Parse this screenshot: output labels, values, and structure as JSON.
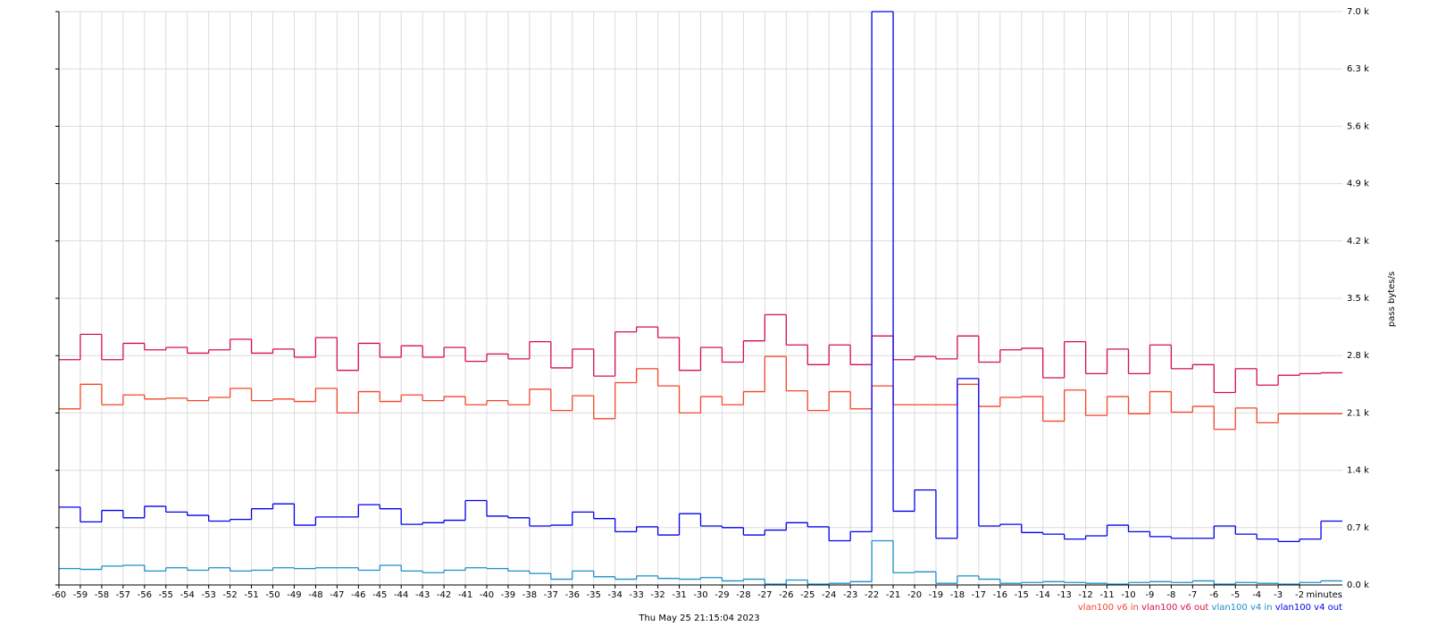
{
  "chart_data": {
    "type": "step-line",
    "x_label": "minutes",
    "y_label": "pass bytes/s",
    "timestamp": "Thu May 25 21:15:04 2023",
    "x": [
      -60,
      -59,
      -58,
      -57,
      -56,
      -55,
      -54,
      -53,
      -52,
      -51,
      -50,
      -49,
      -48,
      -47,
      -46,
      -45,
      -44,
      -43,
      -42,
      -41,
      -40,
      -39,
      -38,
      -37,
      -36,
      -35,
      -34,
      -33,
      -32,
      -31,
      -30,
      -29,
      -28,
      -27,
      -26,
      -25,
      -24,
      -23,
      -22,
      -21,
      -20,
      -19,
      -18,
      -17,
      -16,
      -15,
      -14,
      -13,
      -12,
      -11,
      -10,
      -9,
      -8,
      -7,
      -6,
      -5,
      -4,
      -3,
      -2,
      -1
    ],
    "xlim": [
      -60,
      0
    ],
    "xticks": [
      -60,
      -59,
      -58,
      -57,
      -56,
      -55,
      -54,
      -53,
      -52,
      -51,
      -50,
      -49,
      -48,
      -47,
      -46,
      -45,
      -44,
      -43,
      -42,
      -41,
      -40,
      -39,
      -38,
      -37,
      -36,
      -35,
      -34,
      -33,
      -32,
      -31,
      -30,
      -29,
      -28,
      -27,
      -26,
      -25,
      -24,
      -23,
      -22,
      -21,
      -20,
      -19,
      -18,
      -17,
      -16,
      -15,
      -14,
      -13,
      -12,
      -11,
      -10,
      -9,
      -8,
      -7,
      -6,
      -5,
      -4,
      -3,
      -2
    ],
    "ylim": [
      0,
      7000
    ],
    "yticks": [
      {
        "value": 0,
        "label": "0.0 k"
      },
      {
        "value": 700,
        "label": "0.7 k"
      },
      {
        "value": 1400,
        "label": "1.4 k"
      },
      {
        "value": 2100,
        "label": "2.1 k"
      },
      {
        "value": 2800,
        "label": "2.8 k"
      },
      {
        "value": 3500,
        "label": "3.5 k"
      },
      {
        "value": 4200,
        "label": "4.2 k"
      },
      {
        "value": 4900,
        "label": "4.9 k"
      },
      {
        "value": 5600,
        "label": "5.6 k"
      },
      {
        "value": 6300,
        "label": "6.3 k"
      },
      {
        "value": 7000,
        "label": "7.0 k"
      }
    ],
    "grid": true,
    "series": [
      {
        "name": "vlan100 v6 in",
        "color": "#f4452a",
        "values": [
          2150,
          2450,
          2200,
          2320,
          2270,
          2280,
          2250,
          2290,
          2400,
          2250,
          2270,
          2240,
          2400,
          2100,
          2360,
          2240,
          2320,
          2250,
          2300,
          2200,
          2250,
          2200,
          2390,
          2130,
          2310,
          2030,
          2470,
          2640,
          2430,
          2100,
          2300,
          2200,
          2360,
          2790,
          2370,
          2130,
          2360,
          2150,
          2430,
          2200,
          2200,
          2200,
          2450,
          2180,
          2290,
          2300,
          2000,
          2380,
          2070,
          2300,
          2090,
          2360,
          2110,
          2180,
          1900,
          2160,
          1980,
          2090,
          2090,
          2090
        ]
      },
      {
        "name": "vlan100 v6 out",
        "color": "#d41048",
        "values": [
          2750,
          3060,
          2750,
          2950,
          2870,
          2900,
          2830,
          2870,
          3000,
          2830,
          2880,
          2780,
          3020,
          2620,
          2950,
          2780,
          2920,
          2780,
          2900,
          2730,
          2820,
          2760,
          2970,
          2650,
          2880,
          2550,
          3090,
          3150,
          3020,
          2620,
          2900,
          2720,
          2980,
          3300,
          2930,
          2690,
          2930,
          2690,
          3040,
          2750,
          2790,
          2760,
          3040,
          2720,
          2870,
          2890,
          2530,
          2970,
          2580,
          2880,
          2580,
          2930,
          2640,
          2690,
          2350,
          2640,
          2440,
          2560,
          2580,
          2590
        ]
      },
      {
        "name": "vlan100 v4 in",
        "color": "#1a8fc9",
        "values": [
          200,
          190,
          230,
          240,
          170,
          210,
          180,
          210,
          170,
          180,
          210,
          200,
          210,
          210,
          180,
          240,
          170,
          150,
          180,
          210,
          200,
          170,
          140,
          70,
          170,
          100,
          70,
          110,
          80,
          70,
          90,
          50,
          70,
          10,
          60,
          10,
          20,
          40,
          540,
          150,
          160,
          20,
          110,
          70,
          20,
          30,
          40,
          30,
          20,
          10,
          30,
          40,
          30,
          50,
          10,
          30,
          20,
          10,
          30,
          50
        ]
      },
      {
        "name": "vlan100 v4 out",
        "color": "#0000ee",
        "values": [
          950,
          770,
          910,
          820,
          960,
          890,
          850,
          780,
          800,
          930,
          990,
          730,
          830,
          830,
          980,
          930,
          740,
          760,
          790,
          1030,
          840,
          820,
          720,
          730,
          890,
          810,
          650,
          710,
          610,
          870,
          720,
          700,
          610,
          670,
          760,
          710,
          540,
          650,
          7000,
          900,
          1160,
          570,
          2520,
          720,
          740,
          640,
          620,
          560,
          600,
          730,
          650,
          590,
          570,
          570,
          720,
          620,
          560,
          530,
          560,
          780
        ]
      }
    ]
  }
}
